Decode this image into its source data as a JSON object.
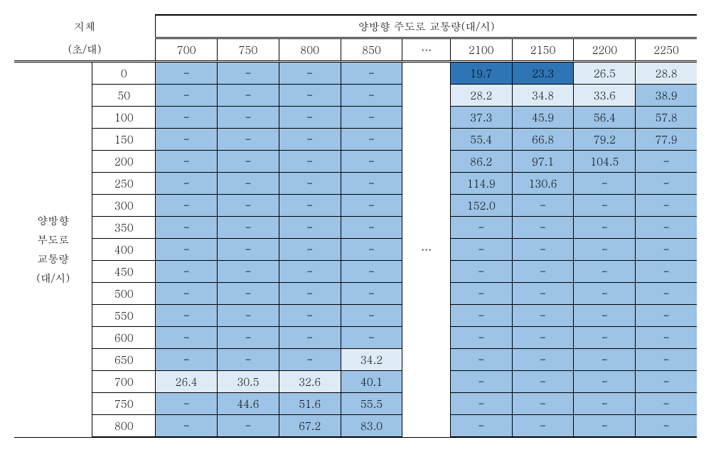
{
  "colors": {
    "cell_mid": "#9dc3e6",
    "cell_light": "#deebf7",
    "cell_dark": "#2e75b6",
    "cell_white": "#ffffff",
    "border": "#000000"
  },
  "header": {
    "top_left_line1": "지체",
    "top_left_line2": "(초/대)",
    "top_right": "양방향 주도로 교통량(대/시)",
    "columns": [
      "700",
      "750",
      "800",
      "850",
      "···",
      "2100",
      "2150",
      "2200",
      "2250"
    ]
  },
  "side": {
    "label_lines": [
      "양방향",
      "부도로",
      "교통량",
      "(대/시)"
    ]
  },
  "ellipsis": "···",
  "dash": "-",
  "rows": [
    {
      "label": "0",
      "c": [
        "-",
        "-",
        "-",
        "-",
        "19.7",
        "23.3",
        "26.5",
        "28.8"
      ],
      "cls": [
        "c-mid",
        "c-mid",
        "c-mid",
        "c-mid",
        "c-dark",
        "c-dark",
        "c-light",
        "c-light"
      ]
    },
    {
      "label": "50",
      "c": [
        "-",
        "-",
        "-",
        "-",
        "28.2",
        "34.8",
        "33.6",
        "38.9"
      ],
      "cls": [
        "c-mid",
        "c-mid",
        "c-mid",
        "c-mid",
        "c-light",
        "c-light",
        "c-light",
        "c-mid"
      ]
    },
    {
      "label": "100",
      "c": [
        "-",
        "-",
        "-",
        "-",
        "37.3",
        "45.9",
        "56.4",
        "57.8"
      ],
      "cls": [
        "c-mid",
        "c-mid",
        "c-mid",
        "c-mid",
        "c-mid",
        "c-mid",
        "c-mid",
        "c-mid"
      ]
    },
    {
      "label": "150",
      "c": [
        "-",
        "-",
        "-",
        "-",
        "55.4",
        "66.8",
        "79.2",
        "77.9"
      ],
      "cls": [
        "c-mid",
        "c-mid",
        "c-mid",
        "c-mid",
        "c-mid",
        "c-mid",
        "c-mid",
        "c-mid"
      ]
    },
    {
      "label": "200",
      "c": [
        "-",
        "-",
        "-",
        "-",
        "86.2",
        "97.1",
        "104.5",
        "-"
      ],
      "cls": [
        "c-mid",
        "c-mid",
        "c-mid",
        "c-mid",
        "c-mid",
        "c-mid",
        "c-mid",
        "c-mid"
      ]
    },
    {
      "label": "250",
      "c": [
        "-",
        "-",
        "-",
        "-",
        "114.9",
        "130.6",
        "-",
        "-"
      ],
      "cls": [
        "c-mid",
        "c-mid",
        "c-mid",
        "c-mid",
        "c-mid",
        "c-mid",
        "c-mid",
        "c-mid"
      ]
    },
    {
      "label": "300",
      "c": [
        "-",
        "-",
        "-",
        "-",
        "152.0",
        "-",
        "-",
        "-"
      ],
      "cls": [
        "c-mid",
        "c-mid",
        "c-mid",
        "c-mid",
        "c-mid",
        "c-mid",
        "c-mid",
        "c-mid"
      ]
    },
    {
      "label": "350",
      "c": [
        "-",
        "-",
        "-",
        "-",
        "-",
        "-",
        "-",
        "-"
      ],
      "cls": [
        "c-mid",
        "c-mid",
        "c-mid",
        "c-mid",
        "c-mid",
        "c-mid",
        "c-mid",
        "c-mid"
      ]
    },
    {
      "label": "400",
      "c": [
        "-",
        "-",
        "-",
        "-",
        "-",
        "-",
        "-",
        "-"
      ],
      "cls": [
        "c-mid",
        "c-mid",
        "c-mid",
        "c-mid",
        "c-mid",
        "c-mid",
        "c-mid",
        "c-mid"
      ]
    },
    {
      "label": "450",
      "c": [
        "-",
        "-",
        "-",
        "-",
        "-",
        "-",
        "-",
        "-"
      ],
      "cls": [
        "c-mid",
        "c-mid",
        "c-mid",
        "c-mid",
        "c-mid",
        "c-mid",
        "c-mid",
        "c-mid"
      ]
    },
    {
      "label": "500",
      "c": [
        "-",
        "-",
        "-",
        "-",
        "-",
        "-",
        "-",
        "-"
      ],
      "cls": [
        "c-mid",
        "c-mid",
        "c-mid",
        "c-mid",
        "c-mid",
        "c-mid",
        "c-mid",
        "c-mid"
      ]
    },
    {
      "label": "550",
      "c": [
        "-",
        "-",
        "-",
        "-",
        "-",
        "-",
        "-",
        "-"
      ],
      "cls": [
        "c-mid",
        "c-mid",
        "c-mid",
        "c-mid",
        "c-mid",
        "c-mid",
        "c-mid",
        "c-mid"
      ]
    },
    {
      "label": "600",
      "c": [
        "-",
        "-",
        "-",
        "-",
        "-",
        "-",
        "-",
        "-"
      ],
      "cls": [
        "c-mid",
        "c-mid",
        "c-mid",
        "c-mid",
        "c-mid",
        "c-mid",
        "c-mid",
        "c-mid"
      ]
    },
    {
      "label": "650",
      "c": [
        "-",
        "-",
        "-",
        "34.2",
        "-",
        "-",
        "-",
        "-"
      ],
      "cls": [
        "c-mid",
        "c-mid",
        "c-mid",
        "c-light",
        "c-mid",
        "c-mid",
        "c-mid",
        "c-mid"
      ]
    },
    {
      "label": "700",
      "c": [
        "26.4",
        "30.5",
        "32.6",
        "40.1",
        "-",
        "-",
        "-",
        "-"
      ],
      "cls": [
        "c-light",
        "c-light",
        "c-light",
        "c-mid",
        "c-mid",
        "c-mid",
        "c-mid",
        "c-mid"
      ]
    },
    {
      "label": "750",
      "c": [
        "-",
        "44.6",
        "51.6",
        "55.5",
        "-",
        "-",
        "-",
        "-"
      ],
      "cls": [
        "c-mid",
        "c-mid",
        "c-mid",
        "c-mid",
        "c-mid",
        "c-mid",
        "c-mid",
        "c-mid"
      ]
    },
    {
      "label": "800",
      "c": [
        "-",
        "-",
        "67.2",
        "83.0",
        "-",
        "-",
        "-",
        "-"
      ],
      "cls": [
        "c-mid",
        "c-mid",
        "c-mid",
        "c-mid",
        "c-mid",
        "c-mid",
        "c-mid",
        "c-mid"
      ]
    }
  ]
}
